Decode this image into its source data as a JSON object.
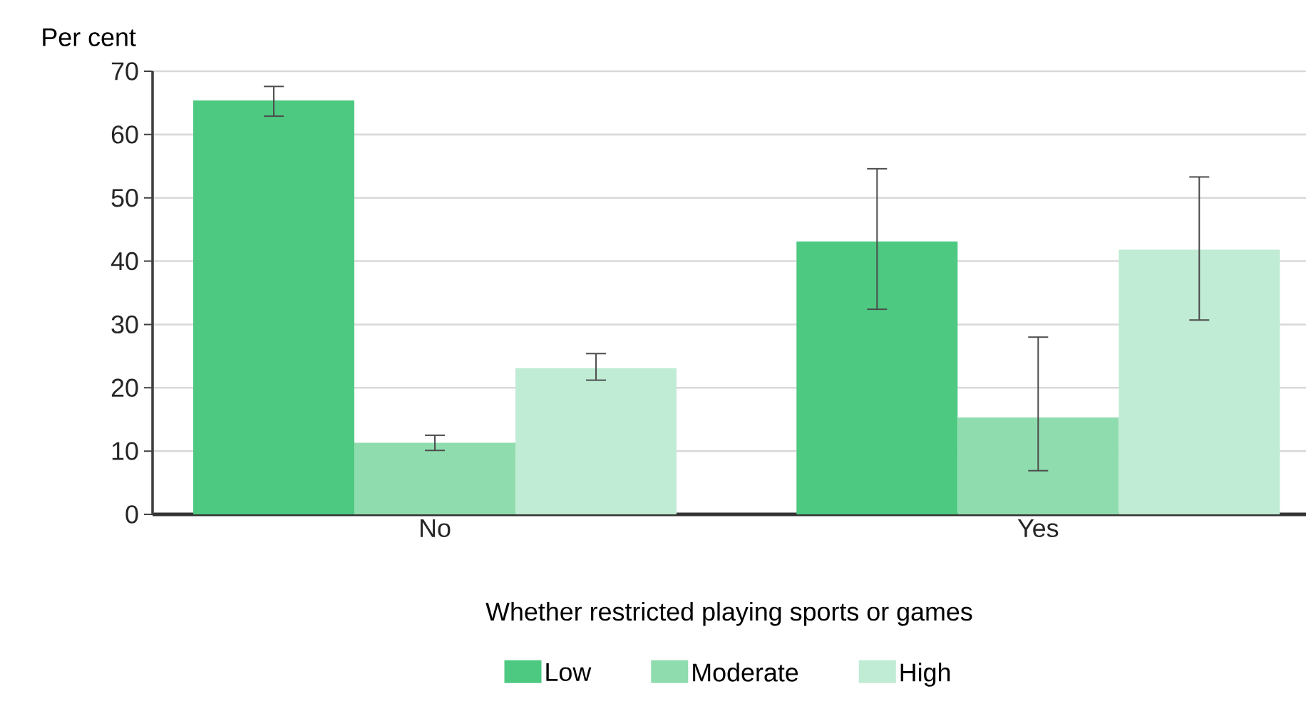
{
  "chart_data": {
    "type": "bar",
    "ylabel": "Per cent",
    "xlabel": "Whether restricted playing sports or games",
    "categories": [
      "No",
      "Yes"
    ],
    "series": [
      {
        "name": "Low",
        "color": "#4dc981",
        "values": [
          65.4,
          43.1
        ],
        "errors": [
          [
            62.9,
            67.6
          ],
          [
            32.4,
            54.6
          ]
        ]
      },
      {
        "name": "Moderate",
        "color": "#8fdcae",
        "values": [
          11.3,
          15.3
        ],
        "errors": [
          [
            10.1,
            12.5
          ],
          [
            6.9,
            28.0
          ]
        ]
      },
      {
        "name": "High",
        "color": "#c0ebd4",
        "values": [
          23.1,
          41.8
        ],
        "errors": [
          [
            21.2,
            25.4
          ],
          [
            30.7,
            53.3
          ]
        ]
      }
    ],
    "ylim": [
      0,
      70
    ],
    "yticks": [
      0,
      10,
      20,
      30,
      40,
      50,
      60,
      70
    ],
    "grid": "y",
    "legend": "bottom"
  }
}
